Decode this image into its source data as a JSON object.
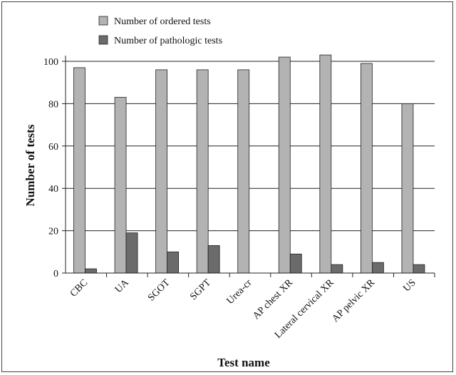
{
  "chart_data": {
    "type": "bar",
    "title": "",
    "xlabel": "Test name",
    "ylabel": "Number of tests",
    "categories": [
      "CBC",
      "UA",
      "SGOT",
      "SGPT",
      "Urea-cr",
      "AP chest XR",
      "Lateral cervical XR",
      "AP pelvic XR",
      "US"
    ],
    "series": [
      {
        "name": "Number of ordered tests",
        "values": [
          97,
          83,
          96,
          96,
          96,
          102,
          103,
          99,
          80
        ],
        "color": "#b3b3b3"
      },
      {
        "name": "Number of pathologic tests",
        "values": [
          2,
          19,
          10,
          13,
          0,
          9,
          4,
          5,
          4
        ],
        "color": "#6b6b6b"
      }
    ],
    "ylim": [
      0,
      100
    ],
    "yticks": [
      0,
      20,
      40,
      60,
      80,
      100
    ],
    "grid": true,
    "legend": "top-left"
  }
}
